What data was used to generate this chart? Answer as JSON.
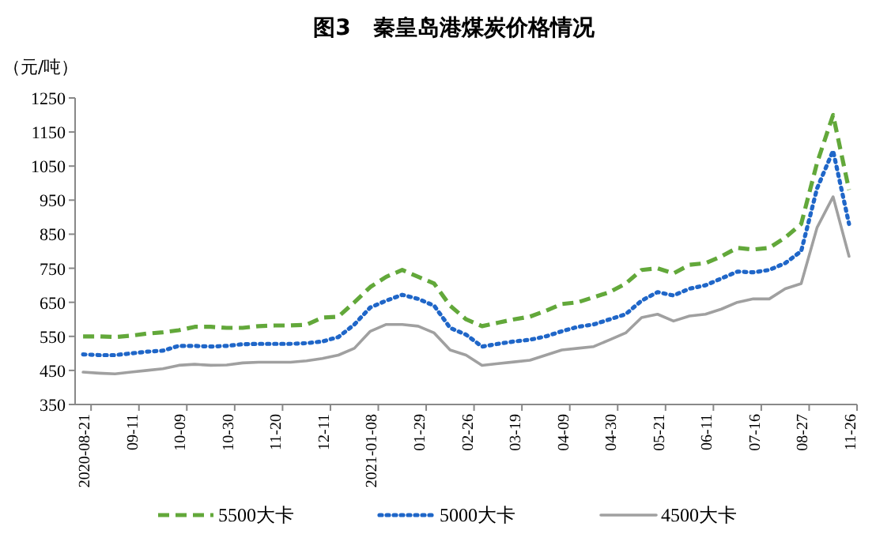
{
  "chart_data": {
    "type": "line",
    "title": "图3　秦皇岛港煤炭价格情况",
    "ylabel": "（元/吨）",
    "categories": [
      "2020-08-21",
      null,
      null,
      "09-11",
      null,
      null,
      "10-09",
      null,
      null,
      "10-30",
      null,
      null,
      "11-20",
      null,
      null,
      "12-11",
      null,
      null,
      "2021-01-08",
      null,
      null,
      "01-29",
      null,
      null,
      "02-26",
      null,
      null,
      "03-19",
      null,
      null,
      "04-09",
      null,
      null,
      "04-30",
      null,
      null,
      "05-21",
      null,
      null,
      "06-11",
      null,
      null,
      "07-16",
      null,
      null,
      "08-27",
      null,
      null,
      "11-26"
    ],
    "series": [
      {
        "name": "5500大卡",
        "color": "#62a83a",
        "line_style": "dashed",
        "values": [
          550,
          550,
          548,
          552,
          558,
          562,
          568,
          578,
          578,
          575,
          575,
          580,
          582,
          582,
          584,
          605,
          608,
          650,
          695,
          725,
          745,
          725,
          705,
          640,
          600,
          580,
          590,
          600,
          608,
          625,
          645,
          650,
          665,
          680,
          705,
          745,
          750,
          735,
          760,
          765,
          785,
          810,
          805,
          810,
          840,
          880,
          1060,
          1200,
          980
        ]
      },
      {
        "name": "5000大卡",
        "color": "#1f66c8",
        "line_style": "dotted",
        "values": [
          497,
          495,
          495,
          500,
          505,
          508,
          522,
          522,
          520,
          522,
          527,
          528,
          528,
          528,
          530,
          535,
          548,
          585,
          635,
          655,
          672,
          660,
          640,
          575,
          555,
          520,
          528,
          535,
          540,
          550,
          565,
          578,
          585,
          600,
          615,
          655,
          680,
          670,
          690,
          700,
          720,
          740,
          738,
          745,
          765,
          800,
          985,
          1095,
          880
        ]
      },
      {
        "name": "4500大卡",
        "color": "#a0a0a0",
        "line_style": "solid",
        "values": [
          445,
          442,
          440,
          445,
          450,
          455,
          465,
          468,
          465,
          466,
          472,
          474,
          474,
          474,
          478,
          485,
          495,
          515,
          565,
          585,
          585,
          580,
          560,
          510,
          495,
          465,
          470,
          475,
          480,
          495,
          510,
          515,
          520,
          540,
          560,
          605,
          615,
          595,
          610,
          615,
          630,
          650,
          660,
          660,
          690,
          705,
          870,
          960,
          785
        ]
      }
    ],
    "ylim": [
      350,
      1250
    ],
    "yticks": [
      350,
      450,
      550,
      650,
      750,
      850,
      950,
      1050,
      1150,
      1250
    ],
    "grid": false,
    "legend": "bottom",
    "marker": "none"
  }
}
